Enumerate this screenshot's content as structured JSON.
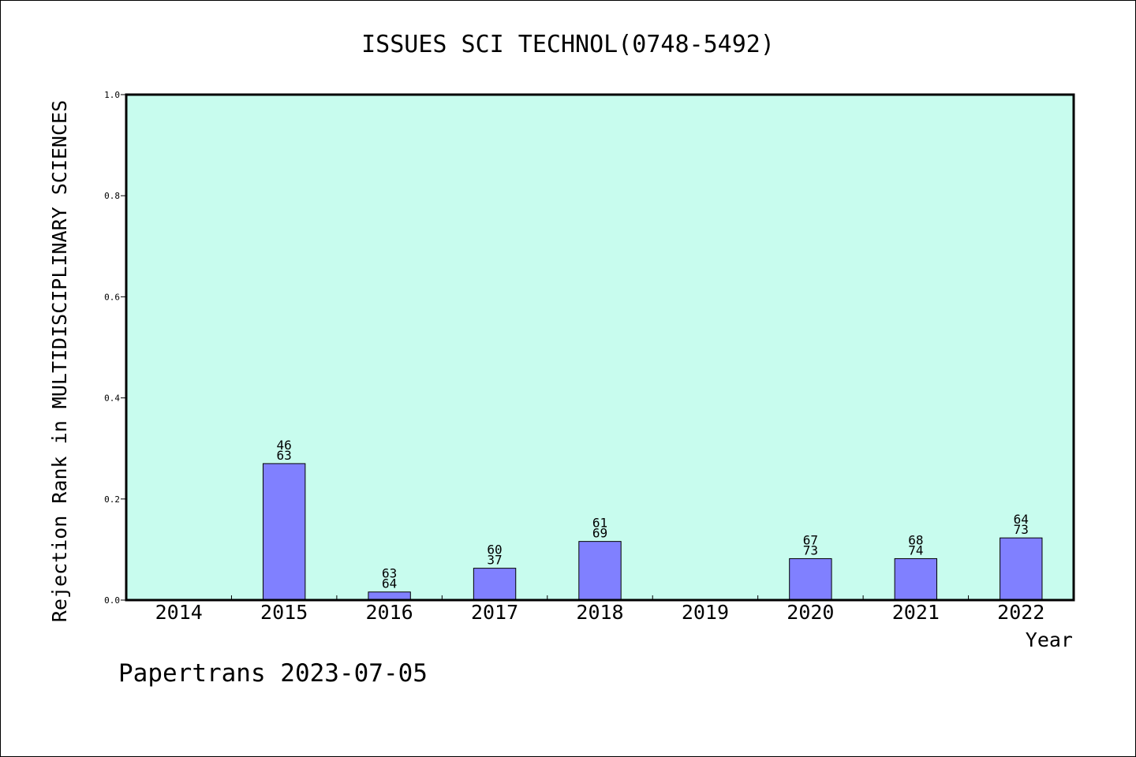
{
  "chart_data": {
    "type": "bar",
    "title": "ISSUES SCI TECHNOL(0748-5492)",
    "xlabel": "Year",
    "ylabel": "Rejection Rank in MULTIDISCIPLINARY SCIENCES",
    "categories": [
      "2014",
      "2015",
      "2016",
      "2017",
      "2018",
      "2019",
      "2020",
      "2021",
      "2022"
    ],
    "values": [
      0,
      0.27,
      0.016,
      0.063,
      0.116,
      0,
      0.082,
      0.082,
      0.123
    ],
    "bar_labels": [
      null,
      [
        "46",
        "63"
      ],
      [
        "63",
        "64"
      ],
      [
        "60",
        "37"
      ],
      [
        "61",
        "69"
      ],
      null,
      [
        "67",
        "73"
      ],
      [
        "68",
        "74"
      ],
      [
        "64",
        "73"
      ]
    ],
    "ylim": [
      0,
      1.0
    ],
    "yticks": [
      "0.0",
      "0.2",
      "0.4",
      "0.6",
      "0.8",
      "1.0"
    ],
    "grid": false,
    "colors": {
      "plot_background": "#c8fcee",
      "bar_fill": "#8080ff",
      "bar_stroke": "#000000"
    }
  },
  "footer": {
    "text": "Papertrans 2023-07-05"
  }
}
